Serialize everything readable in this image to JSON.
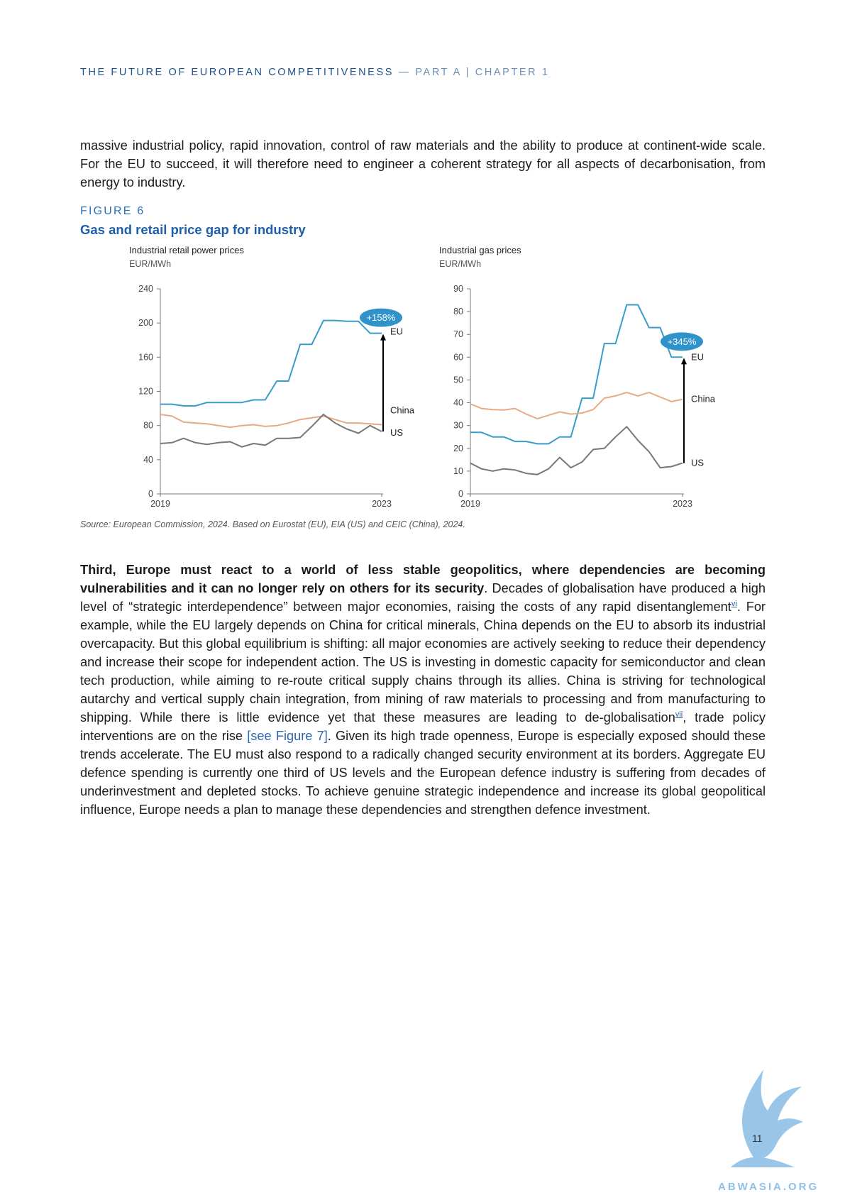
{
  "header": {
    "title": "THE FUTURE OF EUROPEAN COMPETITIVENESS",
    "sub": " — PART A | CHAPTER 1"
  },
  "intro_paragraph": "massive industrial policy, rapid innovation, control of raw materials and the ability to produce at continent-wide scale. For the EU to succeed, it will therefore need to engineer a coherent strategy for all aspects of decarbonisation, from energy to industry.",
  "figure": {
    "label": "FIGURE 6",
    "title": "Gas and retail price gap for industry",
    "source": "Source: European Commission, 2024. Based on Eurostat (EU), EIA (US) and CEIC (China), 2024."
  },
  "chart_data": [
    {
      "type": "line",
      "title": "Industrial retail power prices",
      "ylabel": "EUR/MWh",
      "ylim": [
        0,
        240
      ],
      "yticks": [
        "0",
        "40",
        "80",
        "120",
        "160",
        "200",
        "240"
      ],
      "xtick_labels": [
        "2019",
        "2023"
      ],
      "annotation": "+158%",
      "series": [
        {
          "name": "EU",
          "color": "#3a9cc8",
          "values": [
            105,
            105,
            103,
            103,
            107,
            107,
            107,
            107,
            110,
            110,
            132,
            132,
            175,
            175,
            203,
            203,
            202,
            202,
            188,
            188
          ]
        },
        {
          "name": "China",
          "color": "#e8aa85",
          "values": [
            93,
            91,
            84,
            83,
            82,
            80,
            78,
            80,
            81,
            79,
            80,
            83,
            87,
            89,
            91,
            87,
            83,
            83,
            82,
            81
          ]
        },
        {
          "name": "US",
          "color": "#777777",
          "values": [
            59,
            60,
            65,
            60,
            58,
            60,
            61,
            55,
            59,
            57,
            65,
            65,
            66,
            79,
            93,
            83,
            76,
            71,
            80,
            73
          ]
        }
      ]
    },
    {
      "type": "line",
      "title": "Industrial gas prices",
      "ylabel": "EUR/MWh",
      "ylim": [
        0,
        90
      ],
      "yticks": [
        "0",
        "10",
        "20",
        "30",
        "40",
        "50",
        "60",
        "70",
        "80",
        "90"
      ],
      "xtick_labels": [
        "2019",
        "2023"
      ],
      "annotation": "+345%",
      "series": [
        {
          "name": "EU",
          "color": "#3a9cc8",
          "values": [
            27,
            27,
            25,
            25,
            23,
            23,
            22,
            22,
            25,
            25,
            42,
            42,
            66,
            66,
            83,
            83,
            73,
            73,
            60,
            60
          ]
        },
        {
          "name": "China",
          "color": "#e8aa85",
          "values": [
            39.5,
            37.5,
            37,
            36.8,
            37.5,
            35,
            33,
            34.5,
            36,
            35,
            35.5,
            37,
            42,
            43,
            44.5,
            43,
            44.5,
            42.5,
            40.5,
            41.5
          ]
        },
        {
          "name": "US",
          "color": "#777777",
          "values": [
            13.5,
            11,
            10,
            11,
            10.5,
            9,
            8.5,
            11,
            16,
            11.5,
            14,
            19.5,
            20,
            25,
            29.5,
            23.5,
            18.5,
            11.5,
            12,
            13.5
          ]
        }
      ]
    }
  ],
  "main_paragraph": {
    "bold": "Third, Europe must react to a world of less stable geopolitics, where dependencies are becoming vulnerabilities and it can no longer rely on others for its security",
    "text1": ". Decades of globalisation have produced a high level of “strategic interdependence” between major economies, raising the costs of any rapid disentanglement",
    "ref1": "vi",
    "text2": ". For example, while the EU largely depends on China for critical minerals, China depends on the EU to absorb its industrial overcapacity. But this global equilibrium is shifting: all major economies are actively seeking to reduce their dependency and increase their scope for independent action. The US is investing in domestic capacity for semiconductor and clean tech production, while aiming to re-route critical supply chains through its allies. China is striving for technological autarchy and vertical supply chain integration, from mining of raw materials to processing and from manufacturing to shipping. While there is little evidence yet that these measures are leading to de-globalisation",
    "ref2": "vii",
    "text3": ", trade policy interventions are on the rise ",
    "xref": "[see Figure 7]",
    "text4": ". Given its high trade openness, Europe is especially exposed should these trends accelerate. The EU must also respond to a radically changed security environment at its borders. Aggregate EU defence spending is currently one third of US levels and the European defence industry is suffering from decades of underinvestment and depleted stocks. To achieve genuine strategic independence and increase its global geopolitical influence, Europe needs a plan to manage these dependencies and strengthen defence investment."
  },
  "footer": {
    "page_number": "11",
    "brand": "ABWASIA.ORG"
  }
}
